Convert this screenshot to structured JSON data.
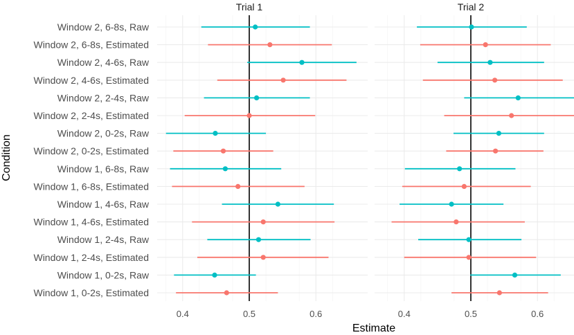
{
  "chart_data": {
    "type": "forest-plot",
    "xlabel": "Estimate",
    "ylabel": "Condition",
    "xlim": [
      0.37,
      0.66
    ],
    "xticks": [
      0.4,
      0.5,
      0.6
    ],
    "reference_line": 0.5,
    "colors": {
      "Raw": "#00BFC4",
      "Estimated": "#F8766D"
    },
    "conditions": [
      "Window 2, 6-8s, Raw",
      "Window 2, 6-8s, Estimated",
      "Window 2, 4-6s, Raw",
      "Window 2, 4-6s, Estimated",
      "Window 2, 2-4s, Raw",
      "Window 2, 2-4s, Estimated",
      "Window 2, 0-2s, Raw",
      "Window 2, 0-2s, Estimated",
      "Window 1, 6-8s, Raw",
      "Window 1, 6-8s, Estimated",
      "Window 1, 4-6s, Raw",
      "Window 1, 4-6s, Estimated",
      "Window 1, 2-4s, Raw",
      "Window 1, 2-4s, Estimated",
      "Window 1, 0-2s, Raw",
      "Window 1, 0-2s, Estimated"
    ],
    "panels": [
      {
        "title": "Trial 1",
        "data": [
          {
            "est": 0.509,
            "low": 0.428,
            "high": 0.591
          },
          {
            "est": 0.531,
            "low": 0.438,
            "high": 0.624
          },
          {
            "est": 0.579,
            "low": 0.497,
            "high": 0.661
          },
          {
            "est": 0.551,
            "low": 0.452,
            "high": 0.646
          },
          {
            "est": 0.511,
            "low": 0.432,
            "high": 0.591
          },
          {
            "est": 0.5,
            "low": 0.403,
            "high": 0.599
          },
          {
            "est": 0.449,
            "low": 0.375,
            "high": 0.525
          },
          {
            "est": 0.461,
            "low": 0.386,
            "high": 0.536
          },
          {
            "est": 0.464,
            "low": 0.381,
            "high": 0.548
          },
          {
            "est": 0.483,
            "low": 0.384,
            "high": 0.583
          },
          {
            "est": 0.543,
            "low": 0.459,
            "high": 0.627
          },
          {
            "est": 0.521,
            "low": 0.414,
            "high": 0.628
          },
          {
            "est": 0.514,
            "low": 0.437,
            "high": 0.592
          },
          {
            "est": 0.521,
            "low": 0.422,
            "high": 0.619
          },
          {
            "est": 0.448,
            "low": 0.387,
            "high": 0.51
          },
          {
            "est": 0.466,
            "low": 0.39,
            "high": 0.543
          }
        ]
      },
      {
        "title": "Trial 2",
        "data": [
          {
            "est": 0.501,
            "low": 0.419,
            "high": 0.584
          },
          {
            "est": 0.522,
            "low": 0.424,
            "high": 0.62
          },
          {
            "est": 0.529,
            "low": 0.45,
            "high": 0.61
          },
          {
            "est": 0.536,
            "low": 0.428,
            "high": 0.638
          },
          {
            "est": 0.571,
            "low": 0.49,
            "high": 0.66
          },
          {
            "est": 0.561,
            "low": 0.46,
            "high": 0.66
          },
          {
            "est": 0.542,
            "low": 0.474,
            "high": 0.61
          },
          {
            "est": 0.537,
            "low": 0.463,
            "high": 0.609
          },
          {
            "est": 0.483,
            "low": 0.401,
            "high": 0.567
          },
          {
            "est": 0.49,
            "low": 0.397,
            "high": 0.59
          },
          {
            "est": 0.471,
            "low": 0.393,
            "high": 0.549
          },
          {
            "est": 0.478,
            "low": 0.381,
            "high": 0.581
          },
          {
            "est": 0.497,
            "low": 0.421,
            "high": 0.576
          },
          {
            "est": 0.497,
            "low": 0.4,
            "high": 0.598
          },
          {
            "est": 0.566,
            "low": 0.499,
            "high": 0.635
          },
          {
            "est": 0.543,
            "low": 0.471,
            "high": 0.616
          }
        ]
      }
    ]
  }
}
